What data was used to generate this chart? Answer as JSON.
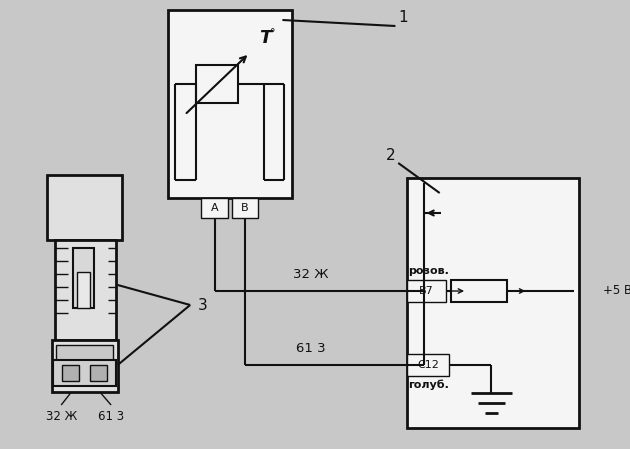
{
  "bg_color": "#c8c8c8",
  "lc": "#111111",
  "white": "#f5f5f5",
  "label_1": "1",
  "label_2": "2",
  "label_3": "3",
  "label_A": "A",
  "label_B": "B",
  "label_B7": "B7",
  "label_C12": "C12",
  "label_32zh": "32 Ж",
  "label_613": "61 3",
  "label_rozov": "розов.",
  "label_golub": "голуб.",
  "label_plus5v": "+5 В",
  "label_T": "T"
}
